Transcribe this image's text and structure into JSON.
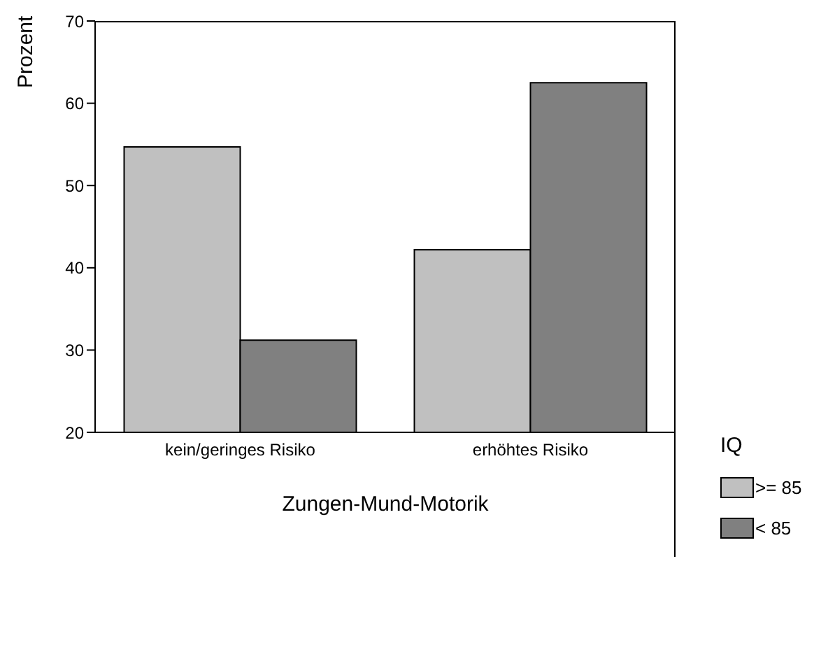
{
  "chart_data": {
    "type": "bar",
    "xlabel": "Zungen-Mund-Motorik",
    "ylabel": "Prozent",
    "legend_title": "IQ",
    "categories": [
      "kein/geringes Risiko",
      "erhöhtes Risiko"
    ],
    "series": [
      {
        "name": ">= 85",
        "color": "#c0c0c0",
        "values": [
          54.7,
          42.2
        ]
      },
      {
        "name": "< 85",
        "color": "#808080",
        "values": [
          31.2,
          62.5
        ]
      }
    ],
    "ylim": [
      20,
      70
    ],
    "yticks": [
      20,
      30,
      40,
      50,
      60,
      70
    ],
    "grid": false,
    "legend": "right"
  }
}
